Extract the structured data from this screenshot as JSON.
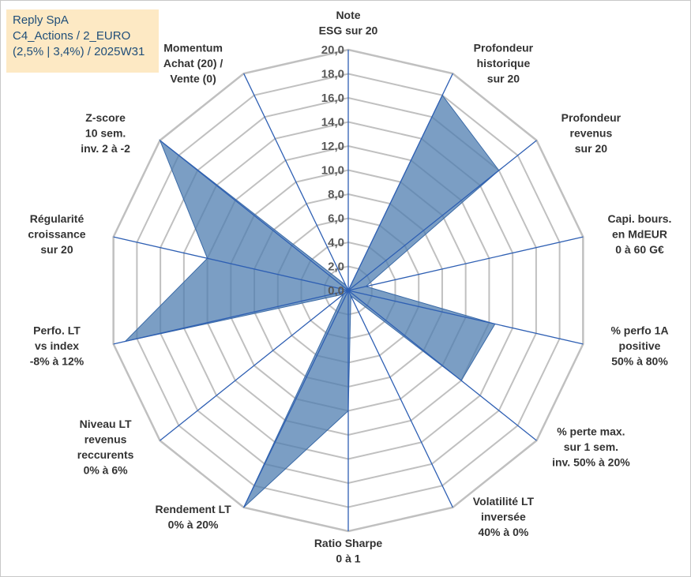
{
  "info_box": {
    "line1": "Reply SpA",
    "line2": "C4_Actions / 2_EURO",
    "line3": "(2,5% | 3,4%) / 2025W31"
  },
  "chart_data": {
    "type": "radar",
    "title": "",
    "ylim": [
      0,
      20
    ],
    "tick_step": 2,
    "tick_labels": [
      "0,0",
      "2,0",
      "4,0",
      "6,0",
      "8,0",
      "10,0",
      "12,0",
      "14,0",
      "16,0",
      "18,0",
      "20,0"
    ],
    "axes": [
      {
        "label": [
          "Note",
          "ESG sur 20"
        ]
      },
      {
        "label": [
          "Profondeur",
          "historique",
          "sur 20"
        ]
      },
      {
        "label": [
          "Profondeur",
          "revenus",
          "sur 20"
        ]
      },
      {
        "label": [
          "Capi. bours.",
          "en MdEUR",
          "0 à 60 G€"
        ]
      },
      {
        "label": [
          "% perfo 1A",
          "positive",
          "50% à 80%"
        ]
      },
      {
        "label": [
          "% perte max.",
          "sur 1 sem.",
          "inv. 50% à 20%"
        ]
      },
      {
        "label": [
          "Volatilité LT",
          "inversée",
          "40% à 0%"
        ]
      },
      {
        "label": [
          "Ratio Sharpe",
          "0 à 1"
        ]
      },
      {
        "label": [
          "Rendement LT",
          "0% à 20%"
        ]
      },
      {
        "label": [
          "Niveau LT",
          "revenus",
          "reccurents",
          "0% à 6%"
        ]
      },
      {
        "label": [
          "Perfo. LT",
          "vs index",
          "-8% à 12%"
        ]
      },
      {
        "label": [
          "Régularité",
          "croissance",
          "sur 20"
        ]
      },
      {
        "label": [
          "Z-score",
          "10 sem.",
          "inv. 2 à -2"
        ]
      },
      {
        "label": [
          "Momentum",
          "Achat (20) /",
          "Vente (0)"
        ]
      }
    ],
    "series": [
      {
        "values": [
          0,
          18,
          16,
          1.5,
          12.5,
          12,
          0.5,
          10,
          20,
          0.5,
          19,
          12,
          20,
          0.5
        ]
      }
    ],
    "colors": {
      "fill": "#4f7db0",
      "fill_opacity": 0.75,
      "stroke": "#3a6aa7",
      "grid": "#c0c0c0",
      "spoke": "#2e5fb3"
    }
  }
}
